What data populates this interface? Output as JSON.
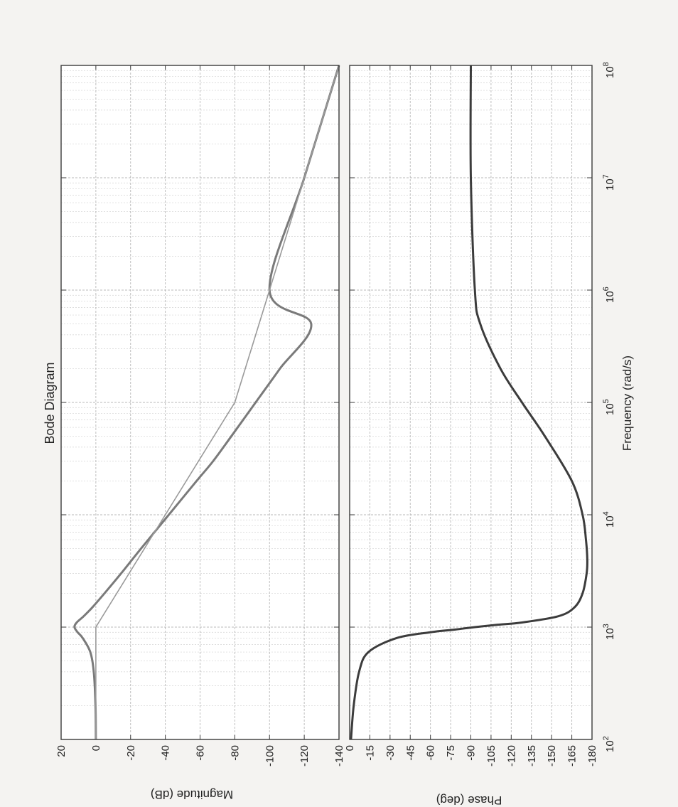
{
  "chart_data": {
    "type": "line",
    "title": "Bode Diagram",
    "xlabel": "Frequency  (rad/s)",
    "x_scale": "log",
    "xlim": [
      100,
      100000000
    ],
    "x_tick_labels": [
      {
        "base": "10",
        "exp": "2"
      },
      {
        "base": "10",
        "exp": "3"
      },
      {
        "base": "10",
        "exp": "4"
      },
      {
        "base": "10",
        "exp": "5"
      },
      {
        "base": "10",
        "exp": "6"
      },
      {
        "base": "10",
        "exp": "7"
      },
      {
        "base": "10",
        "exp": "8"
      }
    ],
    "grid": true,
    "panels": [
      {
        "id": "magnitude",
        "ylabel": "Magnitude (dB)",
        "ylim": [
          -140,
          20
        ],
        "yticks": [
          "20",
          "0",
          "-20",
          "-40",
          "-60",
          "-80",
          "-100",
          "-120",
          "-140"
        ],
        "series": [
          {
            "style": "smooth",
            "color": "#7a7a7a",
            "x": [
              100,
              200,
              400,
              600,
              800,
              900,
              1000,
              1100,
              1250,
              1500,
              2000,
              3000,
              5000,
              10000,
              20000,
              30000,
              50000,
              100000,
              200000,
              500000,
              1000000,
              10000000,
              100000000
            ],
            "y": [
              0,
              0.2,
              1.2,
              3.2,
              7.6,
              10.5,
              12.3,
              11,
              7,
              2,
              -5,
              -14.5,
              -26,
              -42,
              -58,
              -67.5,
              -78,
              -92,
              -106,
              -124,
              -100,
              -120,
              -140
            ]
          },
          {
            "style": "asymptote",
            "color": "#9a9a9a",
            "x": [
              100,
              1000,
              100000,
              100000000
            ],
            "y": [
              0,
              0,
              -80,
              -140
            ]
          }
        ]
      },
      {
        "id": "phase",
        "ylabel": "Phase (deg)",
        "ylim": [
          -180,
          0
        ],
        "yticks": [
          "0",
          "-15",
          "-30",
          "-45",
          "-60",
          "-75",
          "-90",
          "-105",
          "-120",
          "-135",
          "-150",
          "-165",
          "-180"
        ],
        "series": [
          {
            "style": "smooth",
            "color": "#3c3c3c",
            "x": [
              100,
              200,
              400,
              600,
              800,
              900,
              950,
              1000,
              1050,
              1100,
              1250,
              1500,
              2000,
              3000,
              4000,
              6000,
              10000,
              20000,
              50000,
              100000,
              200000,
              500000,
              1000000,
              10000000,
              100000000
            ],
            "y": [
              -1,
              -3,
              -7,
              -14,
              -35,
              -60,
              -78,
              -93,
              -110,
              -128,
              -155,
              -167,
              -173,
              -176,
              -176.5,
              -175.5,
              -173,
              -165,
              -145,
              -128,
              -112,
              -97,
              -93,
              -90,
              -90
            ]
          }
        ]
      }
    ]
  }
}
